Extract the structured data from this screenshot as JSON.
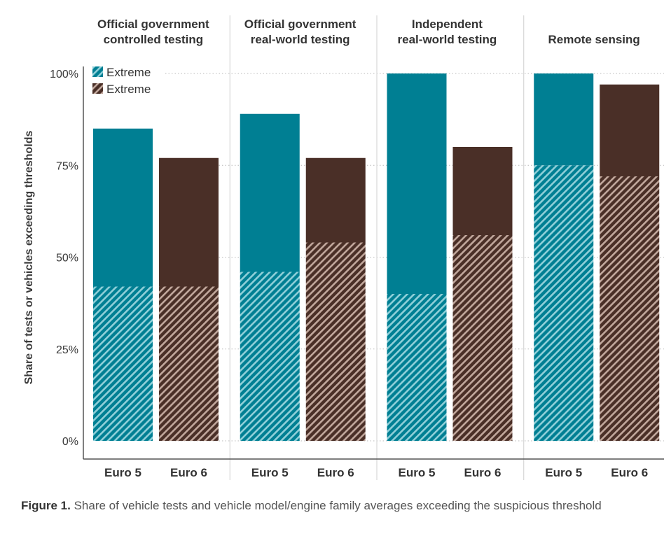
{
  "chart_data": {
    "type": "bar",
    "ylabel": "Share of tests or vehicles exceeding thresholds",
    "yticks": [
      "0%",
      "25%",
      "50%",
      "75%",
      "100%"
    ],
    "ylim": [
      0,
      100
    ],
    "grid": "horizontal dotted",
    "legend": {
      "placement": "top-left",
      "items": [
        {
          "label": "Extreme",
          "color": "#007f93"
        },
        {
          "label": "Extreme",
          "color": "#4a2f27"
        }
      ]
    },
    "colors": {
      "euro5": "#007f93",
      "euro6": "#4a2f27",
      "euro5_hatch": "#8fcfd8",
      "euro6_hatch": "#c1a79c"
    },
    "panels": [
      {
        "title": [
          "Official government",
          "controlled testing"
        ],
        "bars": [
          {
            "category": "Euro 5",
            "total": 85,
            "hatched": 42
          },
          {
            "category": "Euro 6",
            "total": 77,
            "hatched": 42
          }
        ]
      },
      {
        "title": [
          "Official government",
          "real-world testing"
        ],
        "bars": [
          {
            "category": "Euro 5",
            "total": 89,
            "hatched": 46
          },
          {
            "category": "Euro 6",
            "total": 77,
            "hatched": 54
          }
        ]
      },
      {
        "title": [
          "Independent",
          "real-world testing"
        ],
        "bars": [
          {
            "category": "Euro 5",
            "total": 100,
            "hatched": 40
          },
          {
            "category": "Euro 6",
            "total": 80,
            "hatched": 56
          }
        ]
      },
      {
        "title": [
          "Remote sensing"
        ],
        "bars": [
          {
            "category": "Euro 5",
            "total": 100,
            "hatched": 75
          },
          {
            "category": "Euro 6",
            "total": 97,
            "hatched": 72
          }
        ]
      }
    ]
  },
  "caption": {
    "label": "Figure 1.",
    "text": " Share of vehicle tests and vehicle model/engine family averages exceeding the suspicious threshold"
  }
}
